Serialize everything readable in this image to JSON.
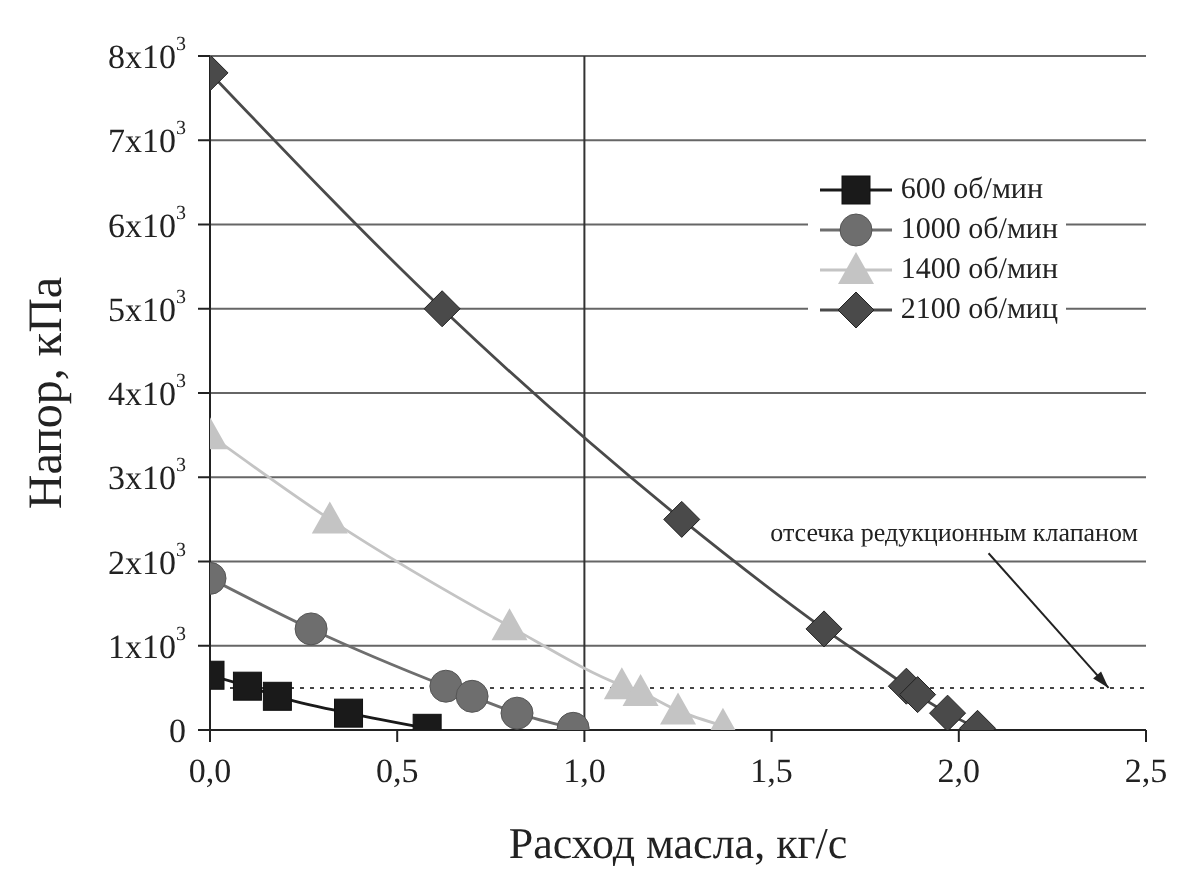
{
  "chart_data": {
    "type": "line",
    "xlabel": "Расход масла, кг/с",
    "ylabel": "Напор, кПа",
    "xlim": [
      0,
      2.5
    ],
    "ylim": [
      0,
      8000
    ],
    "xticks": [
      {
        "value": 0,
        "label": "0,0"
      },
      {
        "value": 0.5,
        "label": "0,5"
      },
      {
        "value": 1,
        "label": "1,0"
      },
      {
        "value": 1.5,
        "label": "1,5"
      },
      {
        "value": 2,
        "label": "2,0"
      },
      {
        "value": 2.5,
        "label": "2,5"
      }
    ],
    "yticks": [
      0,
      {
        "value": 1000,
        "label": "1x10$^{3}$"
      },
      {
        "value": 2000,
        "label": "2x10$^{3}$"
      },
      {
        "value": 3000,
        "label": "3x10$^{3}$"
      },
      {
        "value": 4000,
        "label": "4x10$^{3}$"
      },
      {
        "value": 5000,
        "label": "5x10$^{3}$"
      },
      {
        "value": 6000,
        "label": "6x10$^{3}$"
      },
      {
        "value": 7000,
        "label": "7x10$^{3}$"
      },
      {
        "value": 8000,
        "label": "8x10$^{3}$"
      }
    ],
    "grid": "y",
    "legend": "top right",
    "line_style": "solid",
    "ref_lines": [
      {
        "axis": "y",
        "value": 500,
        "line_style": "dotted",
        "color": "#444444"
      },
      {
        "axis": "x",
        "value": 1,
        "line_style": "solid",
        "color": "#333333"
      }
    ],
    "annotations": [
      {
        "text": "отсечка редукционным клапаном",
        "x": 2.4,
        "y": 500
      }
    ],
    "series": [
      {
        "name": "600 об/мин",
        "color": "#1a1a1a",
        "marker": "square",
        "x": [
          0,
          0.1,
          0.18,
          0.37,
          0.58
        ],
        "values": [
          650,
          520,
          400,
          200,
          20
        ]
      },
      {
        "name": "1000 об/мин",
        "color": "#6e6e6e",
        "marker": "circle",
        "x": [
          0,
          0.27,
          0.63,
          0.7,
          0.82,
          0.97
        ],
        "values": [
          1800,
          1200,
          520,
          400,
          200,
          20
        ]
      },
      {
        "name": "1400 об/мин",
        "color": "#c4c4c4",
        "marker": "triangle",
        "x": [
          0,
          0.32,
          0.8,
          1.1,
          1.15,
          1.25,
          1.37
        ],
        "values": [
          3500,
          2500,
          1230,
          530,
          450,
          230,
          50
        ]
      },
      {
        "name": "2100 об/миц",
        "color": "#4a4a4a",
        "marker": "diamond",
        "x": [
          0,
          0.62,
          1.26,
          1.64,
          1.86,
          1.89,
          1.97,
          2.05
        ],
        "values": [
          7800,
          5000,
          2500,
          1200,
          520,
          420,
          200,
          20
        ]
      }
    ]
  }
}
